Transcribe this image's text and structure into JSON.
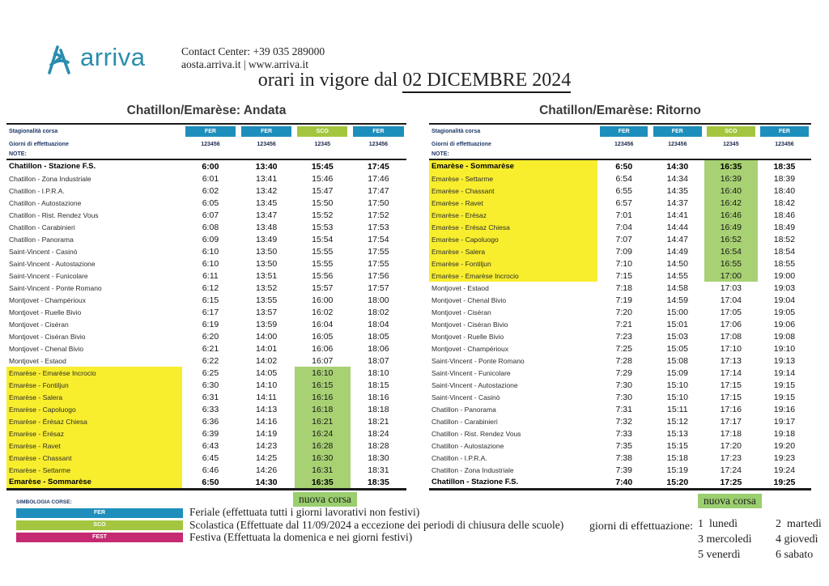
{
  "header": {
    "logo_text": "arriva",
    "contact_line1": "Contact Center: +39 035 289000",
    "contact_line2": "aosta.arriva.it | www.arriva.it",
    "title_prefix": "orari in vigore dal ",
    "title_date": "02 DICEMBRE 2024"
  },
  "labels": {
    "stagionalita": "Stagionalità corsa",
    "giorni": "Giorni di effettuazione",
    "note": "NOTE:"
  },
  "colors": {
    "fer_blue": "#1e8fbc",
    "sco_green": "#a4c63f",
    "fest_magenta": "#c52a72",
    "row_yellow": "#f8ee2e",
    "cell_green": "#a8d173",
    "nuova_green": "#9ace6e",
    "navy_text": "#1f3a68",
    "logo_teal": "#2a8dad"
  },
  "tables": [
    {
      "title": "Chatillon/Emarèse: Andata",
      "services": [
        {
          "type": "FER",
          "days": "123456"
        },
        {
          "type": "FER",
          "days": "123456"
        },
        {
          "type": "SCO",
          "days": "12345"
        },
        {
          "type": "FER",
          "days": "123456"
        }
      ],
      "rows": [
        {
          "stop": "Chatillon - Stazione F.S.",
          "times": [
            "6:00",
            "13:40",
            "15:45",
            "17:45"
          ],
          "hl": false,
          "bold": true
        },
        {
          "stop": "Chatillon - Zona Industriale",
          "times": [
            "6:01",
            "13:41",
            "15:46",
            "17:46"
          ],
          "hl": false,
          "bold": false
        },
        {
          "stop": "Chatillon - I.P.R.A.",
          "times": [
            "6:02",
            "13:42",
            "15:47",
            "17:47"
          ],
          "hl": false,
          "bold": false
        },
        {
          "stop": "Chatillon - Autostazione",
          "times": [
            "6:05",
            "13:45",
            "15:50",
            "17:50"
          ],
          "hl": false,
          "bold": false
        },
        {
          "stop": "Chatillon - Rist. Rendez Vous",
          "times": [
            "6:07",
            "13:47",
            "15:52",
            "17:52"
          ],
          "hl": false,
          "bold": false
        },
        {
          "stop": "Chatillon - Carabinieri",
          "times": [
            "6:08",
            "13:48",
            "15:53",
            "17:53"
          ],
          "hl": false,
          "bold": false
        },
        {
          "stop": "Chatillon - Panorama",
          "times": [
            "6:09",
            "13:49",
            "15:54",
            "17:54"
          ],
          "hl": false,
          "bold": false
        },
        {
          "stop": "Saint-Vincent - Casinò",
          "times": [
            "6:10",
            "13:50",
            "15:55",
            "17:55"
          ],
          "hl": false,
          "bold": false
        },
        {
          "stop": "Saint-Vincent - Autostazione",
          "times": [
            "6:10",
            "13:50",
            "15:55",
            "17:55"
          ],
          "hl": false,
          "bold": false
        },
        {
          "stop": "Saint-Vincent - Funicolare",
          "times": [
            "6:11",
            "13:51",
            "15:56",
            "17:56"
          ],
          "hl": false,
          "bold": false
        },
        {
          "stop": "Saint-Vincent - Ponte Romano",
          "times": [
            "6:12",
            "13:52",
            "15:57",
            "17:57"
          ],
          "hl": false,
          "bold": false
        },
        {
          "stop": "Montjovet - Champérioux",
          "times": [
            "6:15",
            "13:55",
            "16:00",
            "18:00"
          ],
          "hl": false,
          "bold": false
        },
        {
          "stop": "Montjovet - Ruelle Bivio",
          "times": [
            "6:17",
            "13:57",
            "16:02",
            "18:02"
          ],
          "hl": false,
          "bold": false
        },
        {
          "stop": "Montjovet - Ciséran",
          "times": [
            "6:19",
            "13:59",
            "16:04",
            "18:04"
          ],
          "hl": false,
          "bold": false
        },
        {
          "stop": "Montjovet - Ciséran Bivio",
          "times": [
            "6:20",
            "14:00",
            "16:05",
            "18:05"
          ],
          "hl": false,
          "bold": false
        },
        {
          "stop": "Montjovet - Chenal Bivio",
          "times": [
            "6:21",
            "14:01",
            "16:06",
            "18:06"
          ],
          "hl": false,
          "bold": false
        },
        {
          "stop": "Montjovet - Estaod",
          "times": [
            "6:22",
            "14:02",
            "16:07",
            "18:07"
          ],
          "hl": false,
          "bold": false
        },
        {
          "stop": "Emarèse - Emarèse Incrocio",
          "times": [
            "6:25",
            "14:05",
            "16:10",
            "18:10"
          ],
          "hl": true,
          "bold": false
        },
        {
          "stop": "Emarèse - Fontiljun",
          "times": [
            "6:30",
            "14:10",
            "16:15",
            "18:15"
          ],
          "hl": true,
          "bold": false
        },
        {
          "stop": "Emarèse - Salera",
          "times": [
            "6:31",
            "14:11",
            "16:16",
            "18:16"
          ],
          "hl": true,
          "bold": false
        },
        {
          "stop": "Emarèse - Capoluogo",
          "times": [
            "6:33",
            "14:13",
            "16:18",
            "18:18"
          ],
          "hl": true,
          "bold": false
        },
        {
          "stop": "Emarèse - Érésaz Chiesa",
          "times": [
            "6:36",
            "14:16",
            "16:21",
            "18:21"
          ],
          "hl": true,
          "bold": false
        },
        {
          "stop": "Emarèse - Érésaz",
          "times": [
            "6:39",
            "14:19",
            "16:24",
            "18:24"
          ],
          "hl": true,
          "bold": false
        },
        {
          "stop": "Emarèse - Ravet",
          "times": [
            "6:43",
            "14:23",
            "16:28",
            "18:28"
          ],
          "hl": true,
          "bold": false
        },
        {
          "stop": "Emarèse - Chassant",
          "times": [
            "6:45",
            "14:25",
            "16:30",
            "18:30"
          ],
          "hl": true,
          "bold": false
        },
        {
          "stop": "Emarèse - Settarme",
          "times": [
            "6:46",
            "14:26",
            "16:31",
            "18:31"
          ],
          "hl": true,
          "bold": false
        },
        {
          "stop": "Emarèse - Sommarèse",
          "times": [
            "6:50",
            "14:30",
            "16:35",
            "18:35"
          ],
          "hl": true,
          "bold": true
        }
      ]
    },
    {
      "title": "Chatillon/Emarèse: Ritorno",
      "services": [
        {
          "type": "FER",
          "days": "123456"
        },
        {
          "type": "FER",
          "days": "123456"
        },
        {
          "type": "SCO",
          "days": "12345"
        },
        {
          "type": "FER",
          "days": "123456"
        }
      ],
      "rows": [
        {
          "stop": "Emarèse - Sommarèse",
          "times": [
            "6:50",
            "14:30",
            "16:35",
            "18:35"
          ],
          "hl": true,
          "bold": true
        },
        {
          "stop": "Emarèse - Settarme",
          "times": [
            "6:54",
            "14:34",
            "16:39",
            "18:39"
          ],
          "hl": true,
          "bold": false
        },
        {
          "stop": "Emarèse - Chassant",
          "times": [
            "6:55",
            "14:35",
            "16:40",
            "18:40"
          ],
          "hl": true,
          "bold": false
        },
        {
          "stop": "Emarèse - Ravet",
          "times": [
            "6:57",
            "14:37",
            "16:42",
            "18:42"
          ],
          "hl": true,
          "bold": false
        },
        {
          "stop": "Emarèse - Erésaz",
          "times": [
            "7:01",
            "14:41",
            "16:46",
            "18:46"
          ],
          "hl": true,
          "bold": false
        },
        {
          "stop": "Emarèse - Erésaz Chiesa",
          "times": [
            "7:04",
            "14:44",
            "16:49",
            "18:49"
          ],
          "hl": true,
          "bold": false
        },
        {
          "stop": "Emarèse - Capoluogo",
          "times": [
            "7:07",
            "14:47",
            "16:52",
            "18:52"
          ],
          "hl": true,
          "bold": false
        },
        {
          "stop": "Emarèse - Salera",
          "times": [
            "7:09",
            "14:49",
            "16:54",
            "18:54"
          ],
          "hl": true,
          "bold": false
        },
        {
          "stop": "Emarèse - Fontiljun",
          "times": [
            "7:10",
            "14:50",
            "16:55",
            "18:55"
          ],
          "hl": true,
          "bold": false
        },
        {
          "stop": "Emarèse - Emarèse Incrocio",
          "times": [
            "7:15",
            "14:55",
            "17:00",
            "19:00"
          ],
          "hl": true,
          "bold": false
        },
        {
          "stop": "Montjovet - Estaod",
          "times": [
            "7:18",
            "14:58",
            "17:03",
            "19:03"
          ],
          "hl": false,
          "bold": false
        },
        {
          "stop": "Montjovet - Chenal Bivio",
          "times": [
            "7:19",
            "14:59",
            "17:04",
            "19:04"
          ],
          "hl": false,
          "bold": false
        },
        {
          "stop": "Montjovet - Ciséran",
          "times": [
            "7:20",
            "15:00",
            "17:05",
            "19:05"
          ],
          "hl": false,
          "bold": false
        },
        {
          "stop": "Montjovet - Ciséran Bivio",
          "times": [
            "7:21",
            "15:01",
            "17:06",
            "19:06"
          ],
          "hl": false,
          "bold": false
        },
        {
          "stop": "Montjovet - Ruelle Bivio",
          "times": [
            "7:23",
            "15:03",
            "17:08",
            "19:08"
          ],
          "hl": false,
          "bold": false
        },
        {
          "stop": "Montjovet - Champérioux",
          "times": [
            "7:25",
            "15:05",
            "17:10",
            "19:10"
          ],
          "hl": false,
          "bold": false
        },
        {
          "stop": "Saint-Vincent - Ponte Romano",
          "times": [
            "7:28",
            "15:08",
            "17:13",
            "19:13"
          ],
          "hl": false,
          "bold": false
        },
        {
          "stop": "Saint-Vincent - Funicolare",
          "times": [
            "7:29",
            "15:09",
            "17:14",
            "19:14"
          ],
          "hl": false,
          "bold": false
        },
        {
          "stop": "Saint-Vincent - Autostazione",
          "times": [
            "7:30",
            "15:10",
            "17:15",
            "19:15"
          ],
          "hl": false,
          "bold": false
        },
        {
          "stop": "Saint-Vincent - Casinò",
          "times": [
            "7:30",
            "15:10",
            "17:15",
            "19:15"
          ],
          "hl": false,
          "bold": false
        },
        {
          "stop": "Chatillon - Panorama",
          "times": [
            "7:31",
            "15:11",
            "17:16",
            "19:16"
          ],
          "hl": false,
          "bold": false
        },
        {
          "stop": "Chatillon - Carabinieri",
          "times": [
            "7:32",
            "15:12",
            "17:17",
            "19:17"
          ],
          "hl": false,
          "bold": false
        },
        {
          "stop": "Chatillon - Rist. Rendez Vous",
          "times": [
            "7:33",
            "15:13",
            "17:18",
            "19:18"
          ],
          "hl": false,
          "bold": false
        },
        {
          "stop": "Chatillon - Autostazione",
          "times": [
            "7:35",
            "15:15",
            "17:20",
            "19:20"
          ],
          "hl": false,
          "bold": false
        },
        {
          "stop": "Chatillon - I.P.R.A.",
          "times": [
            "7:38",
            "15:18",
            "17:23",
            "19:23"
          ],
          "hl": false,
          "bold": false
        },
        {
          "stop": "Chatillon - Zona Industriale",
          "times": [
            "7:39",
            "15:19",
            "17:24",
            "19:24"
          ],
          "hl": false,
          "bold": false
        },
        {
          "stop": "Chatillon - Stazione F.S.",
          "times": [
            "7:40",
            "15:20",
            "17:25",
            "19:25"
          ],
          "hl": false,
          "bold": true
        }
      ]
    }
  ],
  "legend": {
    "simbologia_label": "SIMBOLOGIA CORSE:",
    "nuova_corsa": "nuova corsa",
    "items": [
      {
        "code": "FER",
        "color_key": "fer_blue",
        "desc": "Feriale (effettuata tutti i giorni lavorativi non festivi)"
      },
      {
        "code": "SCO",
        "color_key": "sco_green",
        "desc": "Scolastica (Effettuate dal 11/09/2024 a eccezione dei periodi di chiusura delle scuole)"
      },
      {
        "code": "FEST",
        "color_key": "fest_magenta",
        "desc": "Festiva (Effettuata la domenica e nei giorni festivi)"
      }
    ],
    "giorni_label": "giorni di effettuazione:",
    "days": [
      "1  lunedì",
      "2  martedì",
      "3 mercoledì",
      "4 giovedì",
      "5 venerdì",
      "6 sabato"
    ]
  }
}
